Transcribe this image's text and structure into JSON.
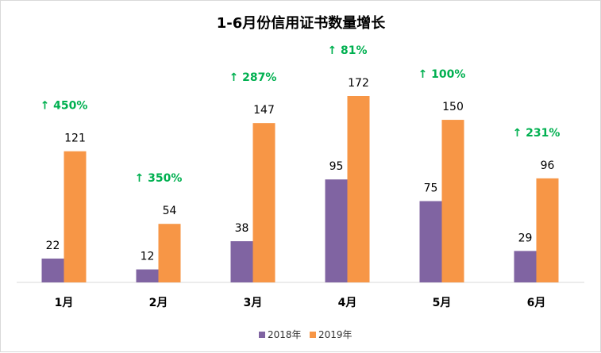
{
  "chart_data": {
    "type": "bar",
    "title": "1-6月份信用证书数量增长",
    "categories": [
      "1月",
      "2月",
      "3月",
      "4月",
      "5月",
      "6月"
    ],
    "series": [
      {
        "name": "2018年",
        "values": [
          22,
          12,
          38,
          95,
          75,
          29
        ],
        "color": "#8064A2"
      },
      {
        "name": "2019年",
        "values": [
          121,
          54,
          147,
          172,
          150,
          96
        ],
        "color": "#F79646"
      }
    ],
    "growth_labels": [
      "↑ 450%",
      "↑ 350%",
      "↑ 287%",
      "↑ 81%",
      "↑ 100%",
      "↑ 231%"
    ],
    "growth_color": "#00B050",
    "ylim": [
      0,
      172
    ],
    "grid": false,
    "legend_position": "bottom"
  }
}
